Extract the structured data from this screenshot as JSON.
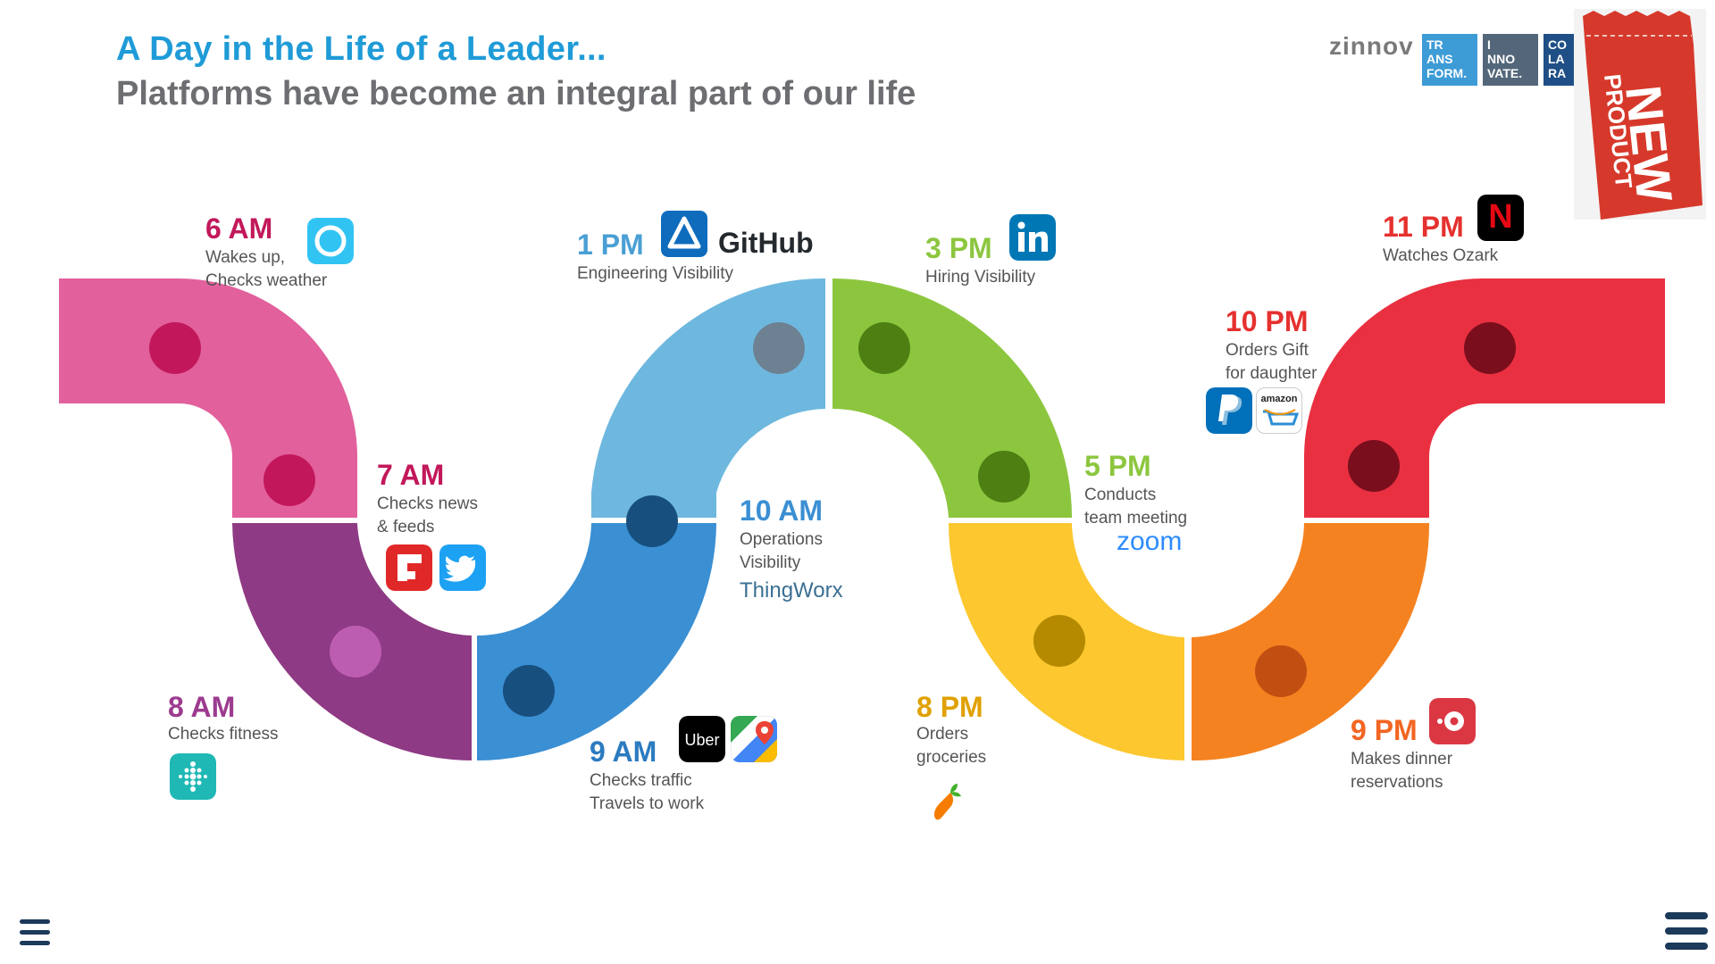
{
  "header": {
    "title": "A Day in the Life of a Leader...",
    "subtitle": "Platforms have become an integral part of our life"
  },
  "branding": {
    "company": "zinnov",
    "tiles": [
      {
        "text": "TR\nANS\nFORM.",
        "color": "#3d9bd6"
      },
      {
        "text": "I\nNNO\nVATE.",
        "color": "#54677a"
      },
      {
        "text": "CO\nLA\nRA",
        "color": "#1f4f86"
      }
    ]
  },
  "ribbon": {
    "line1": "NEW",
    "line2": "PRODUCT",
    "color": "#d6392b"
  },
  "colors": {
    "magenta": "#e2609c",
    "purple": "#8e3a84",
    "blue_dark": "#3b8fd3",
    "blue_light": "#6eb8df",
    "green": "#8cc63f",
    "yellow": "#fcc72f",
    "orange": "#f58220",
    "red": "#e93041"
  },
  "events": [
    {
      "time": "6 AM",
      "description": "Wakes up,\nChecks weather",
      "color": "#c2185b",
      "icons": [
        "alexa-icon"
      ]
    },
    {
      "time": "7 AM",
      "description": "Checks news\n& feeds",
      "color": "#c2185b",
      "icons": [
        "flipboard-icon",
        "twitter-icon"
      ]
    },
    {
      "time": "8 AM",
      "description": "Checks fitness",
      "color": "#9c3b8f",
      "icons": [
        "fitbit-icon"
      ]
    },
    {
      "time": "9 AM",
      "description": "Checks traffic\nTravels to work",
      "color": "#2b7bc0",
      "icons": [
        "uber-icon",
        "google-maps-icon"
      ]
    },
    {
      "time": "10 AM",
      "description": "Operations\nVisibility",
      "color": "#3b8fd3",
      "icons": [
        "thingworx-logo"
      ],
      "logo_text": "ThingWorx"
    },
    {
      "time": "1 PM",
      "description": "Engineering Visibility",
      "color": "#4a9fd4",
      "icons": [
        "azure-icon",
        "github-logo"
      ],
      "logo_text": "GitHub"
    },
    {
      "time": "3 PM",
      "description": "Hiring Visibility",
      "color": "#8cc63f",
      "icons": [
        "linkedin-icon"
      ]
    },
    {
      "time": "5 PM",
      "description": "Conducts\nteam meeting",
      "color": "#8cc63f",
      "icons": [
        "zoom-logo"
      ],
      "logo_text": "zoom"
    },
    {
      "time": "8 PM",
      "description": "Orders\ngroceries",
      "color": "#e0a100",
      "icons": [
        "instacart-icon"
      ]
    },
    {
      "time": "9 PM",
      "description": "Makes dinner\nreservations",
      "color": "#f26522",
      "icons": [
        "opentable-icon"
      ]
    },
    {
      "time": "10 PM",
      "description": "Orders Gift\nfor daughter",
      "color": "#e5312f",
      "icons": [
        "paypal-icon",
        "amazon-icon"
      ],
      "logo_text": "amazon"
    },
    {
      "time": "11 PM",
      "description": "Watches Ozark",
      "color": "#e5312f",
      "icons": [
        "netflix-icon"
      ],
      "logo_text": "N"
    }
  ]
}
